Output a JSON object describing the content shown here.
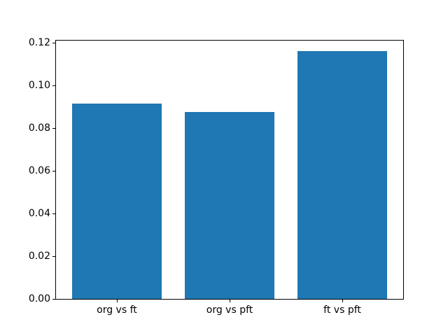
{
  "figure": {
    "background": "#ffffff"
  },
  "chart_data": {
    "type": "bar",
    "categories": [
      "org vs ft",
      "org vs pft",
      "ft vs pft"
    ],
    "values": [
      0.0914,
      0.0875,
      0.1161
    ],
    "title": "",
    "xlabel": "",
    "ylabel": "",
    "ylim": [
      0,
      0.121
    ],
    "yticks": [
      0,
      0.02,
      0.04,
      0.06,
      0.08,
      0.1,
      0.12
    ],
    "ytick_decimals": 2,
    "grid": false,
    "legend": null,
    "bar_color": "#1f77b4",
    "axis_color": "#000000",
    "bar_width_fraction": 0.8,
    "x_outer_margin": 0.54
  }
}
